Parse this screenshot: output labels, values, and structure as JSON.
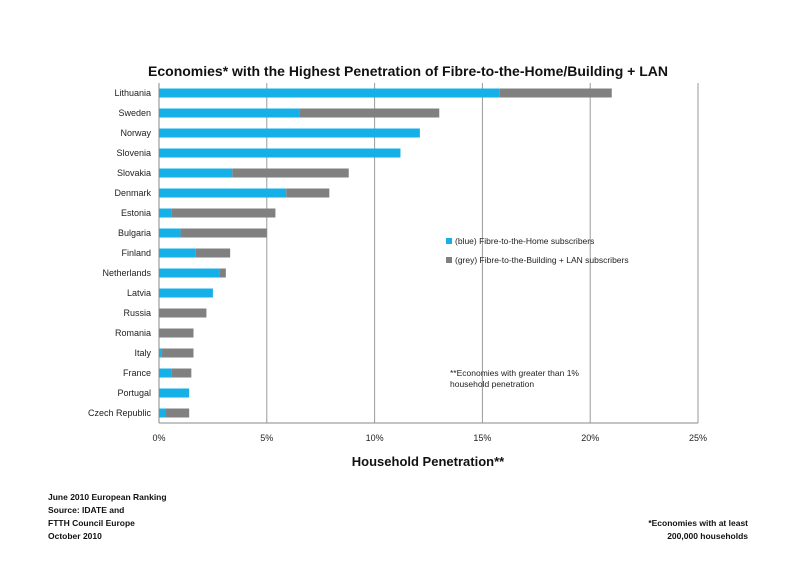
{
  "chart_data": {
    "type": "bar",
    "orientation": "horizontal",
    "stacked": true,
    "title": "Economies* with the Highest Penetration of Fibre-to-the-Home/Building + LAN",
    "xlabel": "Household Penetration**",
    "ylabel": "",
    "xlim": [
      0,
      25
    ],
    "xticks": [
      "0%",
      "5%",
      "10%",
      "15%",
      "20%",
      "25%"
    ],
    "grid": "vertical",
    "categories": [
      "Lithuania",
      "Sweden",
      "Norway",
      "Slovenia",
      "Slovakia",
      "Denmark",
      "Estonia",
      "Bulgaria",
      "Finland",
      "Netherlands",
      "Latvia",
      "Russia",
      "Romania",
      "Italy",
      "France",
      "Portugal",
      "Czech Republic"
    ],
    "series": [
      {
        "name": "(blue) Fibre-to-the-Home subscribers",
        "color": "#16b0e8",
        "values": [
          15.8,
          6.5,
          12.1,
          11.2,
          3.4,
          5.9,
          0.6,
          1.0,
          1.7,
          2.8,
          2.5,
          0.0,
          0.0,
          0.1,
          0.6,
          1.4,
          0.3
        ]
      },
      {
        "name": "(grey) Fibre-to-the-Building + LAN subscribers",
        "color": "#808080",
        "values": [
          5.2,
          6.5,
          0.0,
          0.0,
          5.4,
          2.0,
          4.8,
          4.0,
          1.6,
          0.3,
          0.0,
          2.2,
          1.6,
          1.5,
          0.9,
          0.0,
          1.1
        ]
      }
    ],
    "legend_position": "right",
    "annotation": [
      "**Economies with greater than 1%",
      "household penetration"
    ]
  },
  "footer": {
    "left_lines": [
      "June 2010 European Ranking",
      "Source: IDATE and",
      "FTTH Council Europe",
      "October 2010"
    ],
    "right_lines": [
      "*Economies with at least",
      "200,000 households"
    ]
  }
}
